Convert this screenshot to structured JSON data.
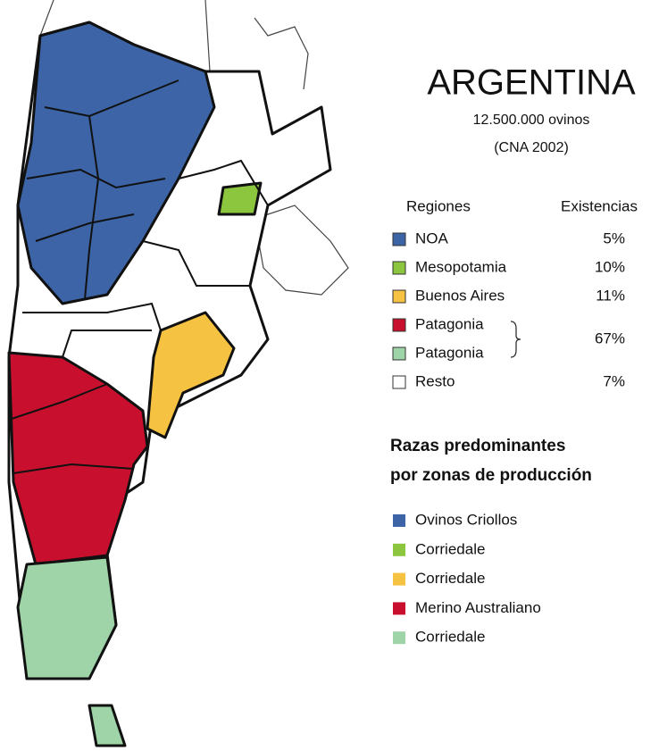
{
  "title": "ARGENTINA",
  "subtitle": "12.500.000 ovinos",
  "source": "(CNA 2002)",
  "regions": {
    "headers": [
      "Regiones",
      "Existencias"
    ],
    "rows": [
      {
        "items": [
          {
            "label": "NOA",
            "color": "#3c64a6"
          }
        ],
        "value": "5%"
      },
      {
        "items": [
          {
            "label": "Mesopotamia",
            "color": "#8cc63f"
          }
        ],
        "value": "10%"
      },
      {
        "items": [
          {
            "label": "Buenos Aires",
            "color": "#f5c242"
          }
        ],
        "value": "11%"
      },
      {
        "items": [
          {
            "label": "Patagonia",
            "color": "#c8102e"
          },
          {
            "label": "Patagonia",
            "color": "#9fd4a8"
          }
        ],
        "value": "67%"
      },
      {
        "items": [
          {
            "label": "Resto",
            "color": "#ffffff"
          }
        ],
        "value": "7%"
      }
    ]
  },
  "breeds": {
    "title_lines": [
      "Razas predominantes",
      "por zonas de producción"
    ],
    "items": [
      {
        "label": "Ovinos Criollos",
        "color": "#3c64a6"
      },
      {
        "label": "Corriedale",
        "color": "#8cc63f"
      },
      {
        "label": "Corriedale",
        "color": "#f5c242"
      },
      {
        "label": "Merino Australiano",
        "color": "#c8102e"
      },
      {
        "label": "Corriedale",
        "color": "#9fd4a8"
      }
    ]
  }
}
